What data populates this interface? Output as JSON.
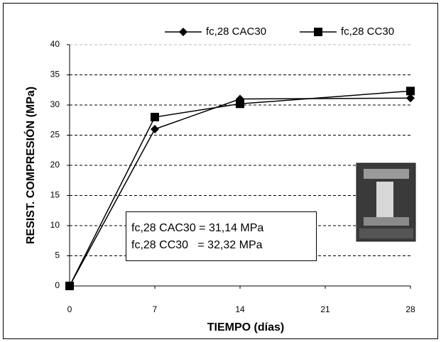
{
  "chart_data": {
    "type": "line",
    "x_label": "TIEMPO (días)",
    "y_label": "RESIST. COMPRESIÓN (MPa)",
    "x": [
      0,
      7,
      14,
      28
    ],
    "series": [
      {
        "name": "fc,28 CAC30",
        "color": "#000000",
        "marker": "diamond",
        "values": [
          0,
          26,
          31,
          31.14
        ]
      },
      {
        "name": "fc,28 CC30",
        "color": "#000000",
        "marker": "square",
        "values": [
          0,
          28,
          30.2,
          32.32
        ]
      }
    ],
    "xlim": [
      0,
      28
    ],
    "xticks": [
      0,
      7,
      14,
      21,
      28
    ],
    "ylim": [
      0,
      40
    ],
    "yticks": [
      0,
      5,
      10,
      15,
      20,
      25,
      30,
      35,
      40
    ],
    "grid": true,
    "legend": "top-right",
    "annotations": [
      "fc,28 CAC30 = 31,14 MPa",
      "fc,28 CC30   = 32,32 MPa"
    ]
  }
}
